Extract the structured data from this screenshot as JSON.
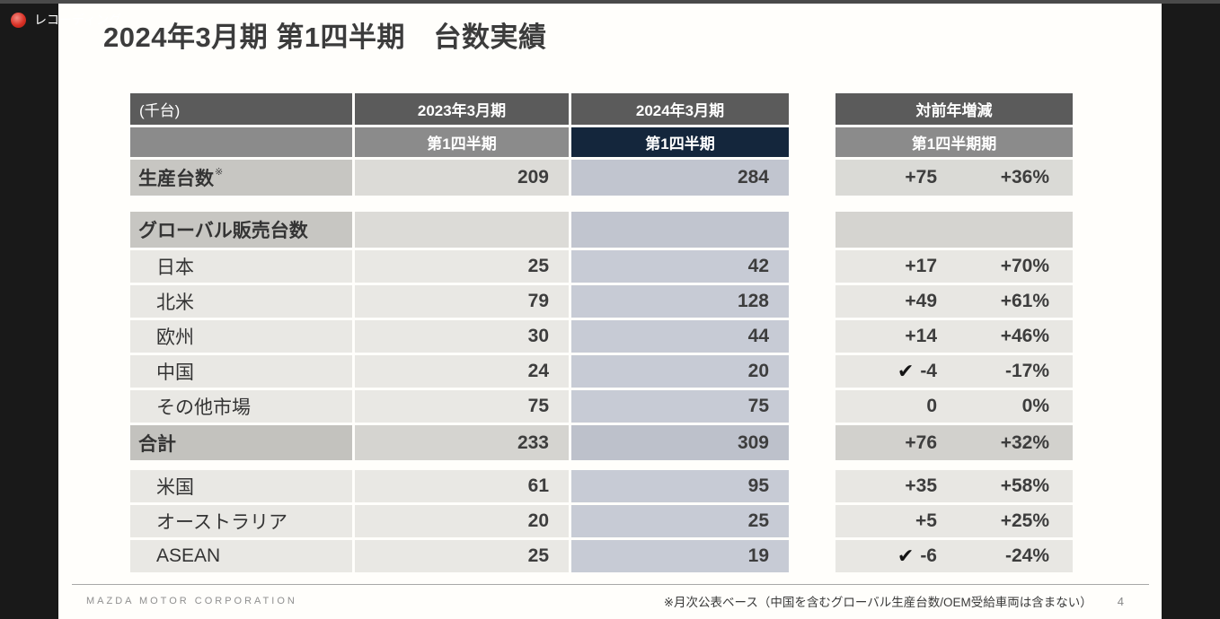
{
  "chrome": {
    "recording_label": "レコーディング"
  },
  "slide": {
    "title": "2024年3月期 第1四半期　台数実績",
    "table": {
      "unit": "(千台)",
      "year_2023": "2023年3月期",
      "year_2024": "2024年3月期",
      "quarter_2023": "第1四半期",
      "quarter_2024": "第1四半期",
      "yoy_header": "対前年増減",
      "yoy_quarter": "第1四半期期",
      "check_glyph": "✔",
      "note_mark": "※",
      "rows": [
        {
          "label": "生産台数",
          "v2023": "209",
          "v2024": "284",
          "diff": "+75",
          "pct": "+36%"
        },
        {
          "label": "グローバル販売台数",
          "v2023": "",
          "v2024": "",
          "diff": "",
          "pct": ""
        },
        {
          "label": "日本",
          "v2023": "25",
          "v2024": "42",
          "diff": "+17",
          "pct": "+70%"
        },
        {
          "label": "北米",
          "v2023": "79",
          "v2024": "128",
          "diff": "+49",
          "pct": "+61%"
        },
        {
          "label": "欧州",
          "v2023": "30",
          "v2024": "44",
          "diff": "+14",
          "pct": "+46%"
        },
        {
          "label": "中国",
          "v2023": "24",
          "v2024": "20",
          "diff": "-4",
          "pct": "-17%",
          "check": true
        },
        {
          "label": "その他市場",
          "v2023": "75",
          "v2024": "75",
          "diff": "0",
          "pct": "0%"
        },
        {
          "label": "合計",
          "v2023": "233",
          "v2024": "309",
          "diff": "+76",
          "pct": "+32%"
        },
        {
          "label": "米国",
          "v2023": "61",
          "v2024": "95",
          "diff": "+35",
          "pct": "+58%"
        },
        {
          "label": "オーストラリア",
          "v2023": "20",
          "v2024": "25",
          "diff": "+5",
          "pct": "+25%"
        },
        {
          "label": "ASEAN",
          "v2023": "25",
          "v2024": "19",
          "diff": "-6",
          "pct": "-24%",
          "check": true
        }
      ]
    },
    "footer": {
      "brand": "MAZDA MOTOR CORPORATION",
      "note": "※月次公表ベース（中国を含むグローバル生産台数/OEM受給車両は含まない）",
      "page": "4"
    }
  }
}
